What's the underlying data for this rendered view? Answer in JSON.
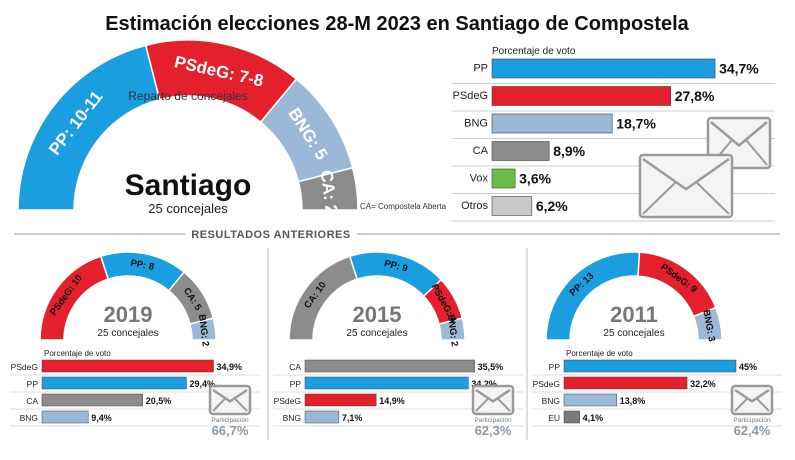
{
  "title": "Estimación elecciones 28-M 2023 en Santiago de Compostela",
  "colors": {
    "PP": "#1a9ee0",
    "PSdeG": "#e3202c",
    "BNG": "#9bb8d6",
    "CA": "#8c8c8c",
    "Vox": "#6cbd45",
    "Otros": "#c8c8c8",
    "EU": "#7a7a7a"
  },
  "main": {
    "city": "Santiago",
    "council_label": "25 concejales",
    "hemicycle_caption": "Reparto de concejales",
    "note": "CA= Compostela Aberta",
    "seat_labels": [
      {
        "party": "PP",
        "text": "PP: 10-11"
      },
      {
        "party": "PSdeG",
        "text": "PSdeG: 7-8"
      },
      {
        "party": "BNG",
        "text": "BNG: 5"
      },
      {
        "party": "CA",
        "text": "CA: 2"
      }
    ],
    "vote_header": "Porcentaje de voto"
  },
  "previous_header": "RESULTADOS ANTERIORES",
  "participation_label": "Participación",
  "previous": [
    {
      "year": "2019",
      "council_label": "25 concejales",
      "participation": "66,7%",
      "vote_header": "Porcentaje de voto",
      "seat_labels": [
        {
          "party": "PSdeG",
          "text": "PSdeG: 10"
        },
        {
          "party": "PP",
          "text": "PP: 8"
        },
        {
          "party": "CA",
          "text": "CA: 5"
        },
        {
          "party": "BNG",
          "text": "BNG: 2"
        }
      ],
      "bar_labels": [
        "PSdeG",
        "PP",
        "CA",
        "BNG"
      ],
      "value_labels": [
        "34,9%",
        "29,4%",
        "20,5%",
        "9,4%"
      ]
    },
    {
      "year": "2015",
      "council_label": "25 concejales",
      "participation": "62,3%",
      "vote_header": "",
      "seat_labels": [
        {
          "party": "CA",
          "text": "CA: 10"
        },
        {
          "party": "PP",
          "text": "PP: 9"
        },
        {
          "party": "PSdeG",
          "text": "PSdeG: 4"
        },
        {
          "party": "BNG",
          "text": "BNG: 2"
        }
      ],
      "bar_labels": [
        "CA",
        "PP",
        "PSdeG",
        "BNG"
      ],
      "value_labels": [
        "35,5%",
        "34,2%",
        "14,9%",
        "7,1%"
      ]
    },
    {
      "year": "2011",
      "council_label": "25 concejales",
      "participation": "62,4%",
      "vote_header": "Porcentaje de voto",
      "seat_labels": [
        {
          "party": "PP",
          "text": "PP: 13"
        },
        {
          "party": "PSdeG",
          "text": "PSdeG: 9"
        },
        {
          "party": "BNG",
          "text": "BNG: 3"
        }
      ],
      "bar_labels": [
        "PP",
        "PSdeG",
        "BNG",
        "EU"
      ],
      "value_labels": [
        "45%",
        "32,2%",
        "13,8%",
        "4,1%"
      ]
    }
  ],
  "chart_data": [
    {
      "type": "pie",
      "variant": "half-donut",
      "title": "",
      "categories": [
        "PP",
        "PSdeG",
        "BNG",
        "CA"
      ],
      "values": [
        10.5,
        7.5,
        5,
        2
      ]
    },
    {
      "type": "bar",
      "orientation": "horizontal",
      "ylabel": "Porcentaje de voto",
      "categories": [
        "PP",
        "PSdeG",
        "BNG",
        "CA",
        "Vox",
        "Otros"
      ],
      "values": [
        34.7,
        27.8,
        18.7,
        8.9,
        3.6,
        6.2
      ],
      "value_labels": [
        "34,7%",
        "27,8%",
        "18,7%",
        "8,9%",
        "3,6%",
        "6,2%"
      ],
      "xlim": [
        0,
        35
      ]
    },
    {
      "type": "pie",
      "variant": "half-donut",
      "title": "2019",
      "categories": [
        "PSdeG",
        "PP",
        "CA",
        "BNG"
      ],
      "values": [
        10,
        8,
        5,
        2
      ]
    },
    {
      "type": "bar",
      "orientation": "horizontal",
      "title": "2019",
      "categories": [
        "PSdeG",
        "PP",
        "CA",
        "BNG"
      ],
      "values": [
        34.9,
        29.4,
        20.5,
        9.4
      ],
      "xlim": [
        0,
        35
      ]
    },
    {
      "type": "pie",
      "variant": "half-donut",
      "title": "2015",
      "categories": [
        "CA",
        "PP",
        "PSdeG",
        "BNG"
      ],
      "values": [
        10,
        9,
        4,
        2
      ]
    },
    {
      "type": "bar",
      "orientation": "horizontal",
      "title": "2015",
      "categories": [
        "CA",
        "PP",
        "PSdeG",
        "BNG"
      ],
      "values": [
        35.5,
        34.2,
        14.9,
        7.1
      ],
      "xlim": [
        0,
        36
      ]
    },
    {
      "type": "pie",
      "variant": "half-donut",
      "title": "2011",
      "categories": [
        "PP",
        "PSdeG",
        "BNG"
      ],
      "values": [
        13,
        9,
        3
      ]
    },
    {
      "type": "bar",
      "orientation": "horizontal",
      "title": "2011",
      "categories": [
        "PP",
        "PSdeG",
        "BNG",
        "EU"
      ],
      "values": [
        45,
        32.2,
        13.8,
        4.1
      ],
      "xlim": [
        0,
        45
      ]
    }
  ]
}
